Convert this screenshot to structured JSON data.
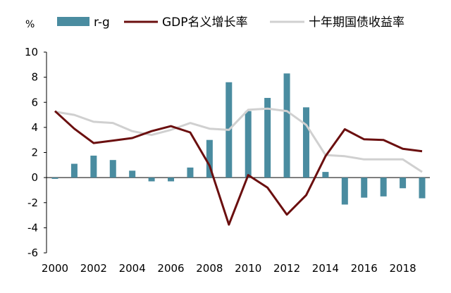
{
  "chart_data": {
    "type": "bar+line",
    "unit": "%",
    "x": [
      2000,
      2001,
      2002,
      2003,
      2004,
      2005,
      2006,
      2007,
      2008,
      2009,
      2010,
      2011,
      2012,
      2013,
      2014,
      2015,
      2016,
      2017,
      2018,
      2019
    ],
    "x_tick_labels": [
      "2000",
      "2002",
      "2004",
      "2006",
      "2008",
      "2010",
      "2012",
      "2014",
      "2016",
      "2018"
    ],
    "y_tick_labels": [
      "10",
      "8",
      "6",
      "4",
      "2",
      "0",
      "-2",
      "-4",
      "-6"
    ],
    "ylim": [
      -6,
      10
    ],
    "grid": false,
    "legend_position": "top",
    "series": [
      {
        "name": "r-g",
        "kind": "bar",
        "color": "#4a8ca0",
        "values": [
          -0.1,
          1.1,
          1.75,
          1.4,
          0.55,
          -0.3,
          -0.3,
          0.8,
          3.0,
          7.6,
          5.3,
          6.35,
          8.3,
          5.6,
          0.45,
          -2.15,
          -1.6,
          -1.5,
          -0.85,
          -1.65
        ]
      },
      {
        "name": "GDP名义增长率",
        "kind": "line",
        "color": "#6b0f0f",
        "values": [
          5.3,
          3.9,
          2.75,
          2.95,
          3.15,
          3.7,
          4.1,
          3.6,
          0.95,
          -3.75,
          0.2,
          -0.8,
          -2.95,
          -1.4,
          1.7,
          3.85,
          3.05,
          3.0,
          2.3,
          2.1
        ]
      },
      {
        "name": "十年期国债收益率",
        "kind": "line",
        "color": "#d0d0d0",
        "values": [
          5.25,
          5.0,
          4.45,
          4.35,
          3.7,
          3.4,
          3.8,
          4.35,
          3.9,
          3.8,
          5.4,
          5.5,
          5.3,
          4.2,
          1.8,
          1.7,
          1.45,
          1.45,
          1.45,
          0.45
        ]
      }
    ]
  }
}
